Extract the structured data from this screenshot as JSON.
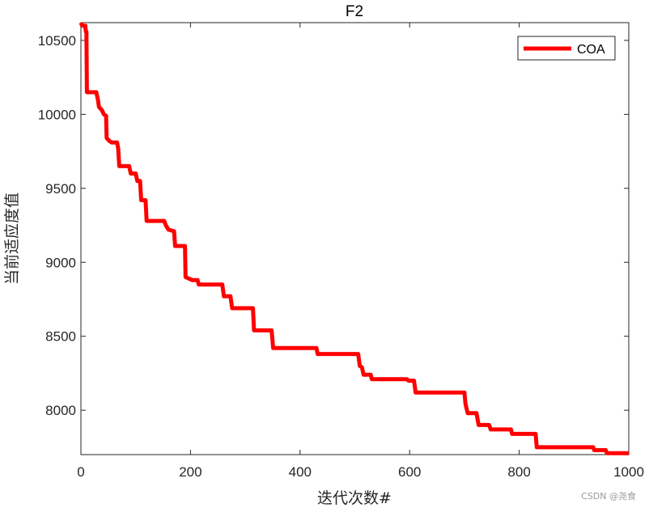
{
  "chart_data": {
    "type": "line",
    "title": "F2",
    "xlabel": "迭代次数#",
    "ylabel": "当前适应度值",
    "xlim": [
      0,
      1000
    ],
    "ylim": [
      7700,
      10620
    ],
    "xticks": [
      0,
      200,
      400,
      600,
      800,
      1000
    ],
    "yticks": [
      8000,
      8500,
      9000,
      9500,
      10000,
      10500
    ],
    "grid": false,
    "legend_position": "top-right",
    "series": [
      {
        "name": "COA",
        "color": "#ff0000",
        "points": [
          [
            0,
            10620
          ],
          [
            2,
            10600
          ],
          [
            8,
            10600
          ],
          [
            9,
            10560
          ],
          [
            10,
            10560
          ],
          [
            11,
            10150
          ],
          [
            28,
            10150
          ],
          [
            31,
            10100
          ],
          [
            33,
            10050
          ],
          [
            38,
            10030
          ],
          [
            42,
            10000
          ],
          [
            46,
            9990
          ],
          [
            47,
            9840
          ],
          [
            52,
            9820
          ],
          [
            56,
            9810
          ],
          [
            66,
            9810
          ],
          [
            68,
            9770
          ],
          [
            70,
            9650
          ],
          [
            88,
            9650
          ],
          [
            91,
            9600
          ],
          [
            100,
            9600
          ],
          [
            103,
            9550
          ],
          [
            108,
            9550
          ],
          [
            110,
            9420
          ],
          [
            118,
            9420
          ],
          [
            120,
            9280
          ],
          [
            152,
            9280
          ],
          [
            155,
            9250
          ],
          [
            160,
            9220
          ],
          [
            170,
            9210
          ],
          [
            172,
            9110
          ],
          [
            190,
            9110
          ],
          [
            191,
            8900
          ],
          [
            203,
            8880
          ],
          [
            213,
            8880
          ],
          [
            215,
            8850
          ],
          [
            258,
            8850
          ],
          [
            261,
            8770
          ],
          [
            273,
            8770
          ],
          [
            276,
            8690
          ],
          [
            314,
            8690
          ],
          [
            316,
            8540
          ],
          [
            348,
            8540
          ],
          [
            351,
            8420
          ],
          [
            430,
            8420
          ],
          [
            432,
            8380
          ],
          [
            506,
            8380
          ],
          [
            509,
            8300
          ],
          [
            513,
            8290
          ],
          [
            516,
            8240
          ],
          [
            529,
            8240
          ],
          [
            531,
            8210
          ],
          [
            595,
            8210
          ],
          [
            598,
            8200
          ],
          [
            608,
            8200
          ],
          [
            611,
            8120
          ],
          [
            700,
            8120
          ],
          [
            702,
            8040
          ],
          [
            706,
            7980
          ],
          [
            722,
            7980
          ],
          [
            726,
            7900
          ],
          [
            745,
            7900
          ],
          [
            748,
            7870
          ],
          [
            785,
            7870
          ],
          [
            787,
            7840
          ],
          [
            830,
            7840
          ],
          [
            832,
            7750
          ],
          [
            935,
            7750
          ],
          [
            937,
            7730
          ],
          [
            958,
            7730
          ],
          [
            960,
            7710
          ],
          [
            1000,
            7710
          ]
        ]
      }
    ],
    "watermark": "CSDN @尧食"
  }
}
